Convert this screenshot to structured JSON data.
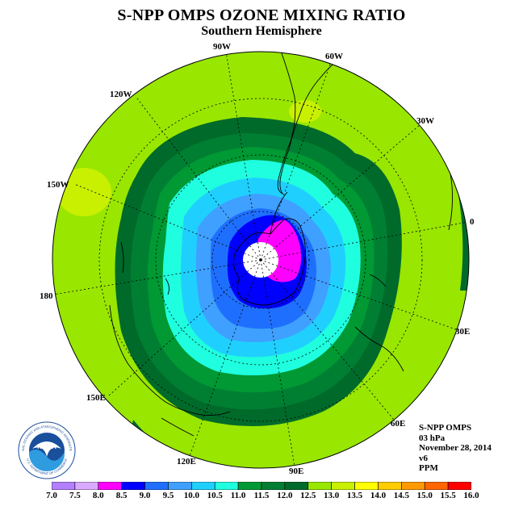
{
  "header": {
    "title": "S-NPP OMPS OZONE MIXING RATIO",
    "subtitle": "Southern Hemisphere"
  },
  "map": {
    "projection": "south polar stereographic",
    "longitude_labels": [
      "90W",
      "60W",
      "30W",
      "0",
      "30E",
      "60E",
      "90E",
      "120E",
      "150E",
      "180",
      "150W",
      "120W"
    ],
    "ozone_hole_color": "#ff00ff",
    "background_color": "#99e600"
  },
  "info": {
    "lines": [
      "S-NPP OMPS",
      "03 hPa",
      "November 28, 2014",
      "v6",
      "PPM"
    ]
  },
  "logo": {
    "text": "NOAA",
    "ring_text": "NATIONAL OCEANIC AND ATMOSPHERIC ADMINISTRATION",
    "ring_text_bottom": "U.S. DEPARTMENT OF COMMERCE"
  },
  "colorbar": {
    "ticks": [
      "7.0",
      "7.5",
      "8.0",
      "8.5",
      "9.0",
      "9.5",
      "10.0",
      "10.5",
      "11.0",
      "11.5",
      "12.0",
      "12.5",
      "13.0",
      "13.5",
      "14.0",
      "14.5",
      "15.0",
      "15.5",
      "16.0"
    ],
    "colors": [
      "#b27fff",
      "#d9aaff",
      "#ff00ff",
      "#0000ff",
      "#1f6fff",
      "#3fa0ff",
      "#1fd0ff",
      "#1fffdf",
      "#009933",
      "#007f33",
      "#006a2a",
      "#99e600",
      "#c8f000",
      "#ffff00",
      "#ffcc00",
      "#ff9900",
      "#ff6600",
      "#ff0000",
      "#a05a4a"
    ]
  }
}
